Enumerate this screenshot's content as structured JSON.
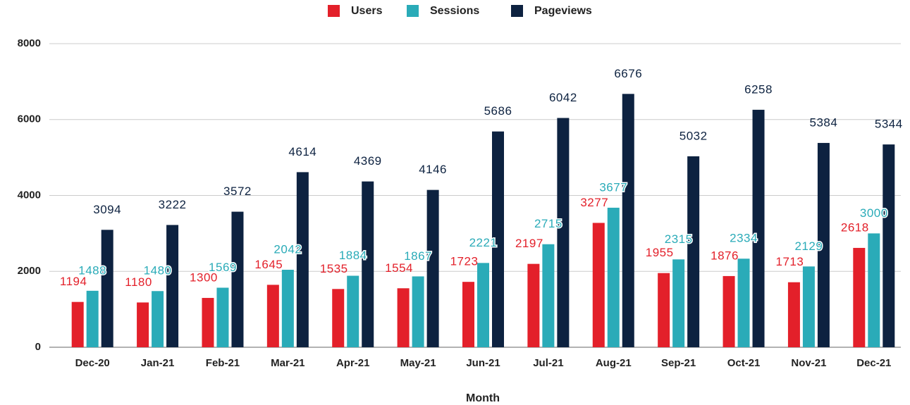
{
  "chart_data": {
    "type": "bar",
    "x_label": "Month",
    "categories": [
      "Dec-20",
      "Jan-21",
      "Feb-21",
      "Mar-21",
      "Apr-21",
      "May-21",
      "Jun-21",
      "Jul-21",
      "Aug-21",
      "Sep-21",
      "Oct-21",
      "Nov-21",
      "Dec-21"
    ],
    "series": [
      {
        "name": "Users",
        "color": "#e3202a",
        "values": [
          1194,
          1180,
          1300,
          1645,
          1535,
          1554,
          1723,
          2197,
          3277,
          1955,
          1876,
          1713,
          2618
        ]
      },
      {
        "name": "Sessions",
        "color": "#2aabb8",
        "values": [
          1488,
          1480,
          1569,
          2042,
          1884,
          1867,
          2221,
          2715,
          3677,
          2315,
          2334,
          2129,
          3000
        ]
      },
      {
        "name": "Pageviews",
        "color": "#0d2240",
        "values": [
          3094,
          3222,
          3572,
          4614,
          4369,
          4146,
          5686,
          6042,
          6676,
          5032,
          6258,
          5384,
          5344
        ]
      }
    ],
    "ylim": [
      0,
      8000
    ],
    "yticks": [
      0,
      2000,
      4000,
      6000,
      8000
    ],
    "grid": true,
    "legend": "top"
  }
}
